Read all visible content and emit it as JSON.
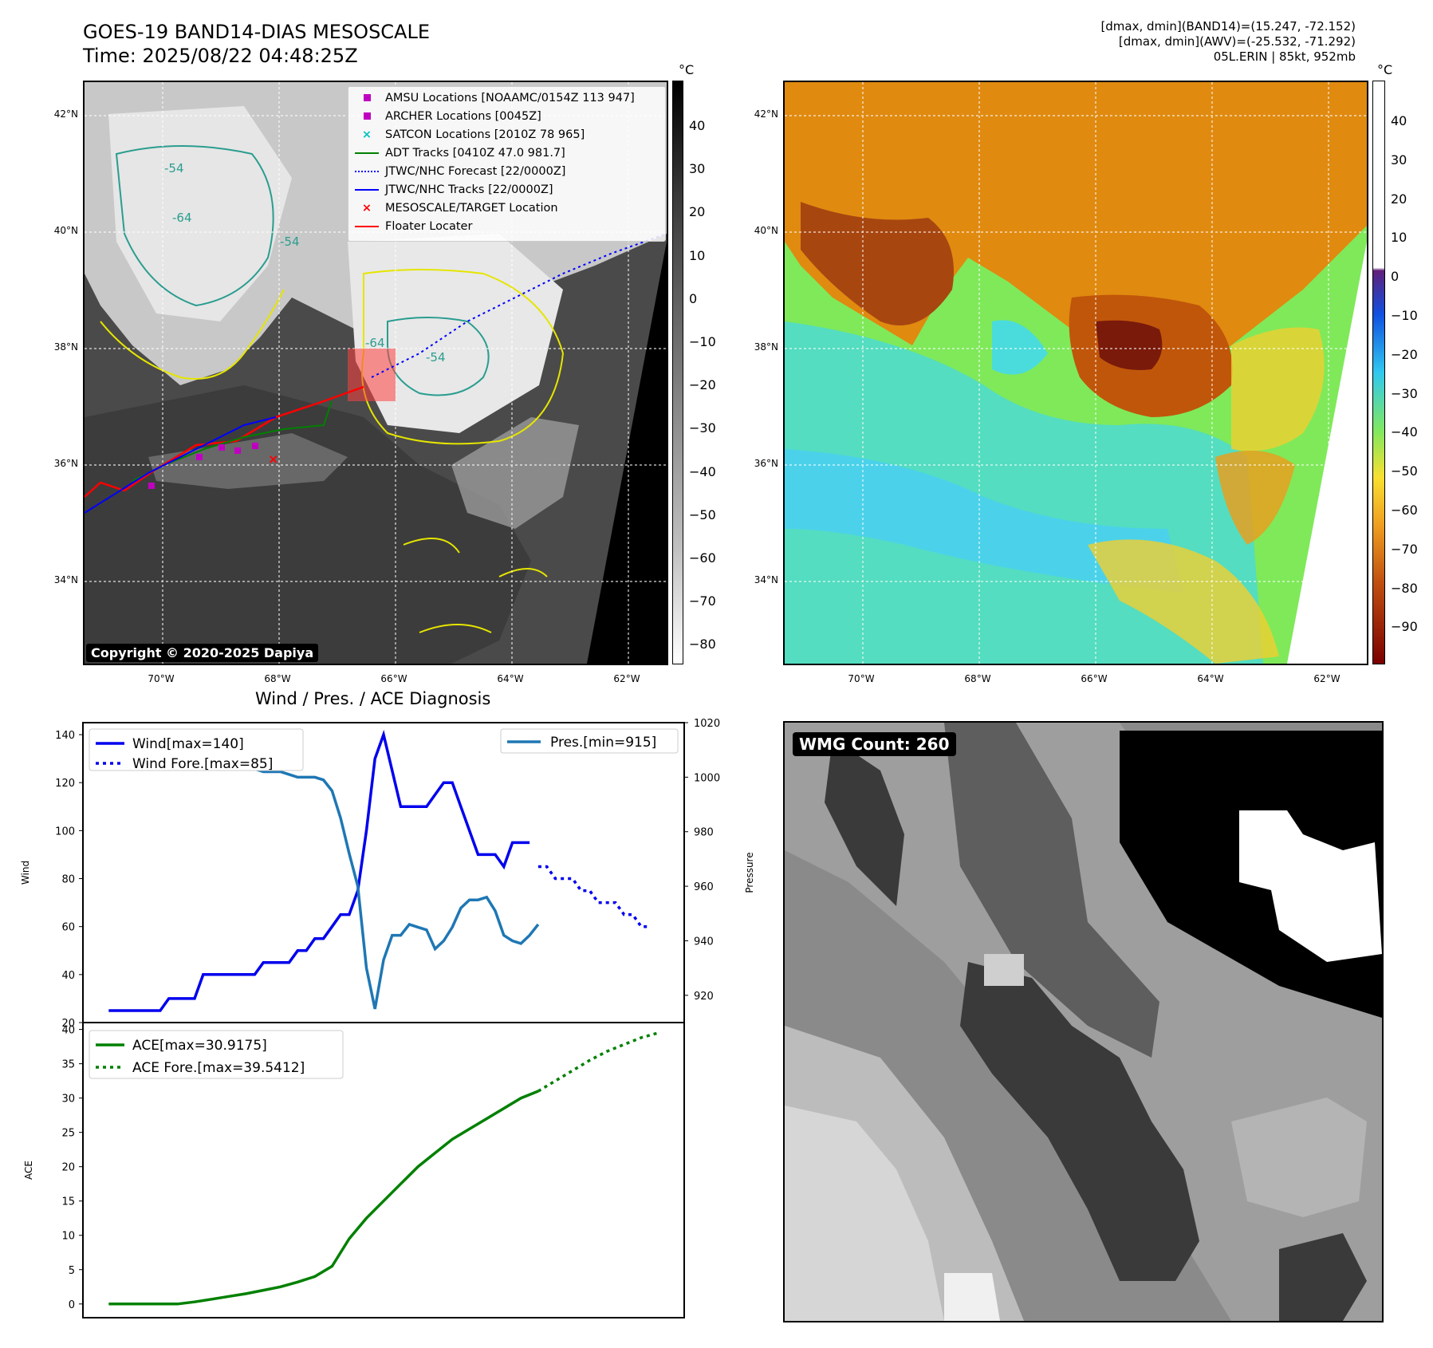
{
  "header": {
    "title_line1": "GOES-19 BAND14-DIAS MESOSCALE",
    "title_line2": "Time: 2025/08/22 04:48:25Z",
    "info_line1": "[dmax, dmin](BAND14)=(15.247, -72.152)",
    "info_line2": "[dmax, dmin](AWV)=(-25.532, -71.292)",
    "info_line3": "05L.ERIN | 85kt, 952mb"
  },
  "map": {
    "lat_labels": [
      "42°N",
      "40°N",
      "38°N",
      "36°N",
      "34°N"
    ],
    "lon_labels": [
      "70°W",
      "68°W",
      "66°W",
      "64°W",
      "62°W"
    ],
    "copyright": "Copyright © 2020-2025 Dapiya",
    "contour_labels": [
      "-54",
      "-64",
      "-54",
      "-64",
      "-54"
    ],
    "legend": [
      {
        "label": "AMSU Locations [NOAAMC/0154Z 113 947]",
        "color": "#c000c0",
        "marker": "square"
      },
      {
        "label": "ARCHER Locations [0045Z]",
        "color": "#c000c0",
        "marker": "square"
      },
      {
        "label": "SATCON Locations [2010Z 78 965]",
        "color": "#00c0c0",
        "marker": "x"
      },
      {
        "label": "ADT Tracks [0410Z 47.0 981.7]",
        "color": "#008000",
        "marker": "line"
      },
      {
        "label": "JTWC/NHC Forecast [22/0000Z]",
        "color": "#0000ff",
        "marker": "dotted"
      },
      {
        "label": "JTWC/NHC Tracks [22/0000Z]",
        "color": "#0000ff",
        "marker": "line-dot"
      },
      {
        "label": "MESOSCALE/TARGET Location",
        "color": "#ff0000",
        "marker": "x"
      },
      {
        "label": "Floater Locater",
        "color": "#ff0000",
        "marker": "line"
      }
    ]
  },
  "colorbar_gray": {
    "unit": "°C",
    "ticks": [
      "40",
      "30",
      "20",
      "10",
      "0",
      "−10",
      "−20",
      "−30",
      "−40",
      "−50",
      "−60",
      "−70",
      "−80"
    ]
  },
  "colorbar_color": {
    "unit": "°C",
    "ticks": [
      "40",
      "30",
      "20",
      "10",
      "0",
      "−10",
      "−20",
      "−30",
      "−40",
      "−50",
      "−60",
      "−70",
      "−80",
      "−90"
    ]
  },
  "wmg": {
    "label": "WMG Count: 260"
  },
  "chart_data": [
    {
      "type": "line",
      "title": "Wind / Pres. / ACE Diagnosis",
      "ylabel": "Wind",
      "y2label": "Pressure",
      "ylim": [
        20,
        145
      ],
      "y2lim": [
        910,
        1020
      ],
      "yticks": [
        20,
        40,
        60,
        80,
        100,
        120,
        140
      ],
      "y2ticks": [
        920,
        940,
        960,
        980,
        1000,
        1020
      ],
      "legend_left": [
        "Wind[max=140]",
        "Wind Fore.[max=85]"
      ],
      "legend_right": [
        "Pres.[min=915]"
      ],
      "series": [
        {
          "name": "Wind[max=140]",
          "color": "#0000ee",
          "style": "solid",
          "x": [
            0,
            1,
            2,
            3,
            4,
            5,
            6,
            7,
            8,
            9,
            10,
            11,
            12,
            13,
            14,
            15,
            16,
            17,
            18,
            19,
            20,
            21,
            22,
            23,
            24,
            25,
            26,
            27,
            28,
            29,
            30,
            31,
            32,
            33,
            34,
            35,
            36,
            37,
            38,
            39,
            40,
            41,
            42,
            43,
            44,
            45,
            46,
            47,
            48,
            49
          ],
          "values": [
            25,
            25,
            25,
            25,
            25,
            25,
            25,
            30,
            30,
            30,
            30,
            40,
            40,
            40,
            40,
            40,
            40,
            40,
            45,
            45,
            45,
            45,
            50,
            50,
            55,
            55,
            60,
            65,
            65,
            75,
            100,
            130,
            140,
            125,
            110,
            110,
            110,
            110,
            115,
            120,
            120,
            110,
            100,
            90,
            90,
            90,
            85,
            95,
            95,
            95
          ]
        },
        {
          "name": "Wind Fore.[max=85]",
          "color": "#0000ee",
          "style": "dotted",
          "x": [
            50,
            51,
            52,
            53,
            54,
            55,
            56,
            57,
            58,
            59,
            60,
            61,
            62,
            63
          ],
          "values": [
            85,
            85,
            80,
            80,
            80,
            75,
            75,
            70,
            70,
            70,
            65,
            65,
            60,
            60
          ]
        },
        {
          "name": "Pres.[min=915]",
          "color": "#1f77b4",
          "style": "solid",
          "axis": "right",
          "x": [
            0,
            1,
            2,
            3,
            4,
            5,
            6,
            7,
            8,
            9,
            10,
            11,
            12,
            13,
            14,
            15,
            16,
            17,
            18,
            19,
            20,
            21,
            22,
            23,
            24,
            25,
            26,
            27,
            28,
            29,
            30,
            31,
            32,
            33,
            34,
            35,
            36,
            37,
            38,
            39,
            40,
            41,
            42,
            43,
            44,
            45,
            46,
            47,
            48,
            49,
            50
          ],
          "values": [
            1012,
            1012,
            1008,
            1007,
            1006,
            1006,
            1006,
            1006,
            1005,
            1005,
            1005,
            1004,
            1004,
            1005,
            1004,
            1003,
            1003,
            1003,
            1002,
            1002,
            1002,
            1001,
            1000,
            1000,
            1000,
            999,
            995,
            985,
            972,
            960,
            930,
            915,
            933,
            942,
            942,
            946,
            945,
            944,
            937,
            940,
            945,
            952,
            955,
            955,
            956,
            951,
            942,
            940,
            939,
            942,
            946
          ]
        }
      ]
    },
    {
      "type": "line",
      "ylabel": "ACE",
      "ylim": [
        -2,
        41
      ],
      "yticks": [
        0,
        5,
        10,
        15,
        20,
        25,
        30,
        35,
        40
      ],
      "legend": [
        "ACE[max=30.9175]",
        "ACE Fore.[max=39.5412]"
      ],
      "series": [
        {
          "name": "ACE[max=30.9175]",
          "color": "#008000",
          "style": "solid",
          "x": [
            0,
            2,
            4,
            6,
            8,
            10,
            12,
            14,
            16,
            18,
            20,
            22,
            24,
            26,
            28,
            30,
            32,
            34,
            36,
            38,
            40,
            42,
            44,
            46,
            48,
            50
          ],
          "values": [
            0,
            0,
            0,
            0,
            0,
            0.3,
            0.7,
            1.1,
            1.5,
            2.0,
            2.5,
            3.2,
            4.0,
            5.5,
            9.5,
            12.5,
            15.0,
            17.5,
            20.0,
            22.0,
            24.0,
            25.5,
            27.0,
            28.5,
            30.0,
            31.0
          ]
        },
        {
          "name": "ACE Fore.[max=39.5412]",
          "color": "#008000",
          "style": "dotted",
          "x": [
            50,
            52,
            54,
            56,
            58,
            60,
            62,
            64
          ],
          "values": [
            31.0,
            32.5,
            34.0,
            35.5,
            36.8,
            37.8,
            38.8,
            39.5
          ]
        }
      ]
    }
  ]
}
